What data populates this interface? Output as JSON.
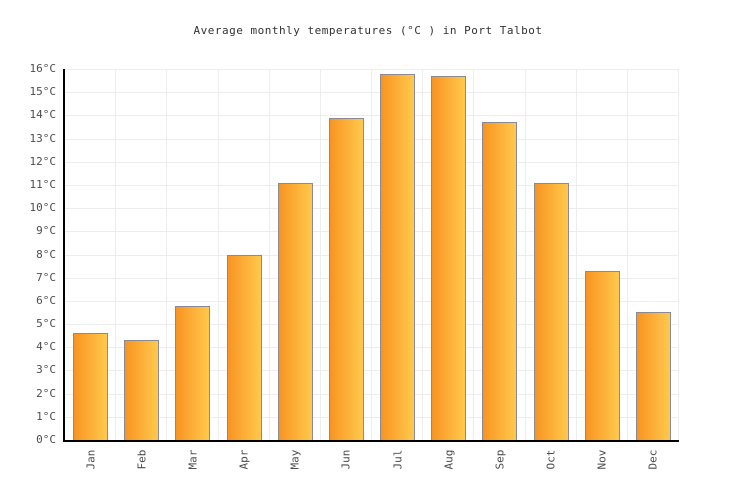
{
  "chart_data": {
    "type": "bar",
    "title": "Average monthly temperatures (°C ) in Port Talbot",
    "categories": [
      "Jan",
      "Feb",
      "Mar",
      "Apr",
      "May",
      "Jun",
      "Jul",
      "Aug",
      "Sep",
      "Oct",
      "Nov",
      "Dec"
    ],
    "values": [
      4.6,
      4.3,
      5.8,
      8.0,
      11.1,
      13.9,
      15.8,
      15.7,
      13.7,
      11.1,
      7.3,
      5.5
    ],
    "xlabel": "",
    "ylabel": "",
    "ylim": [
      0,
      16
    ],
    "ytick_step": 1,
    "ytick_suffix": "°C",
    "grid": "on",
    "legend": "none",
    "colors": {
      "bar_gradient_left": "#F89422",
      "bar_gradient_right": "#FFC94D",
      "bar_border": "#8A8A96",
      "gridline": "#EDEDED",
      "axis": "#000000",
      "tick_label": "#4D4D4D",
      "title_text": "#333333",
      "background": "#FFFFFF"
    }
  }
}
